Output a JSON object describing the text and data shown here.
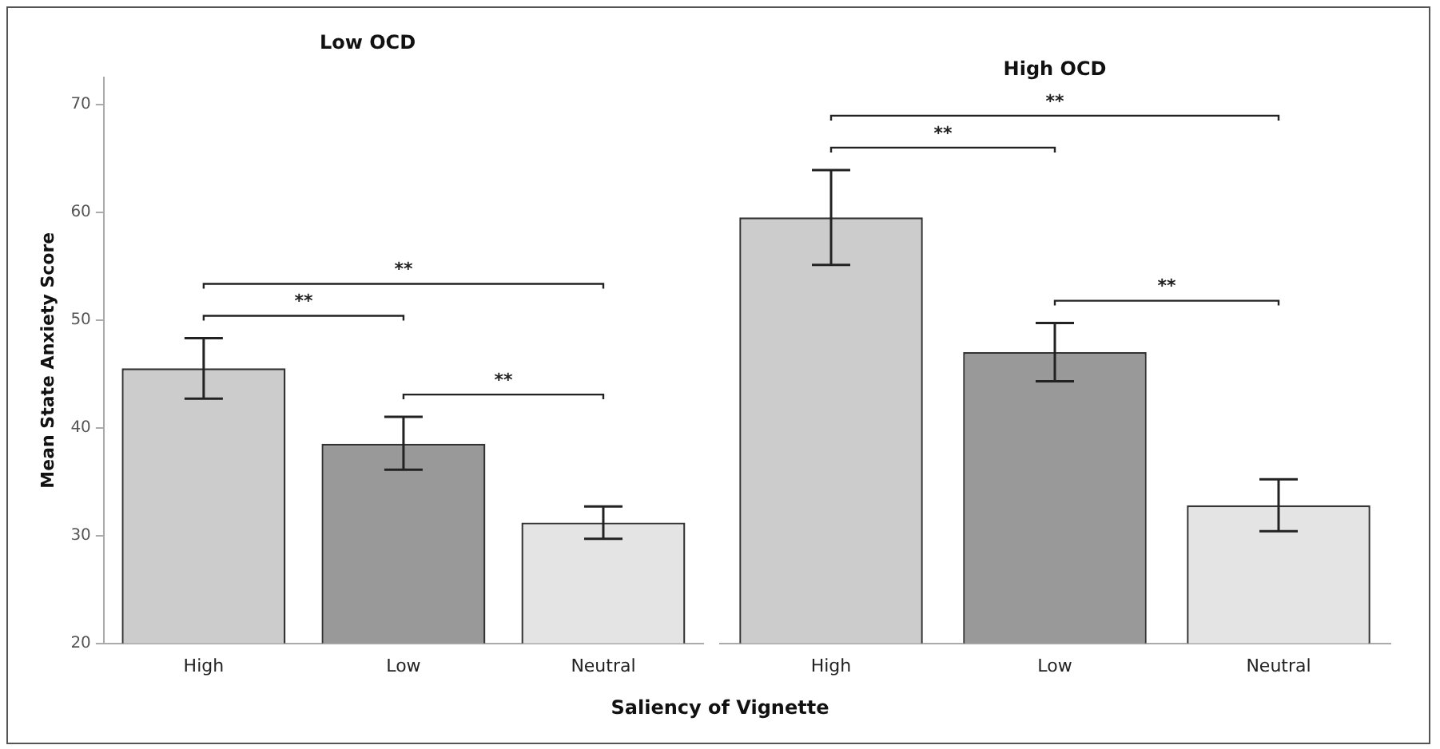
{
  "chart_data": [
    {
      "type": "bar",
      "title": "Low OCD",
      "xlabel": "Saliency of Vignette",
      "ylabel": "Mean State Anxiety Score",
      "categories": [
        "High",
        "Low",
        "Neutral"
      ],
      "values": [
        45.5,
        38.5,
        31.2
      ],
      "colors": [
        "#cccccc",
        "#999999",
        "#e4e4e4"
      ],
      "errors": [
        [
          42.7,
          48.3
        ],
        [
          36.1,
          41.0
        ],
        [
          29.7,
          32.7
        ]
      ],
      "ylim": [
        20,
        72.5
      ],
      "yticks": [
        20,
        30,
        40,
        50,
        60,
        70
      ],
      "grid": false,
      "annotations": [
        "**",
        "**",
        "**"
      ]
    },
    {
      "type": "bar",
      "title": "High OCD",
      "categories": [
        "High",
        "Low",
        "Neutral"
      ],
      "values": [
        59.5,
        47.0,
        32.8
      ],
      "colors": [
        "#cccccc",
        "#999999",
        "#e4e4e4"
      ],
      "errors": [
        [
          55.1,
          63.9
        ],
        [
          44.3,
          49.7
        ],
        [
          30.4,
          35.2
        ]
      ],
      "ylim": [
        20,
        70
      ],
      "yticks": [
        20,
        30,
        40,
        50,
        60,
        70
      ],
      "grid": false,
      "tick_labels": "x",
      "annotations": [
        "**",
        "**",
        "**"
      ]
    }
  ]
}
